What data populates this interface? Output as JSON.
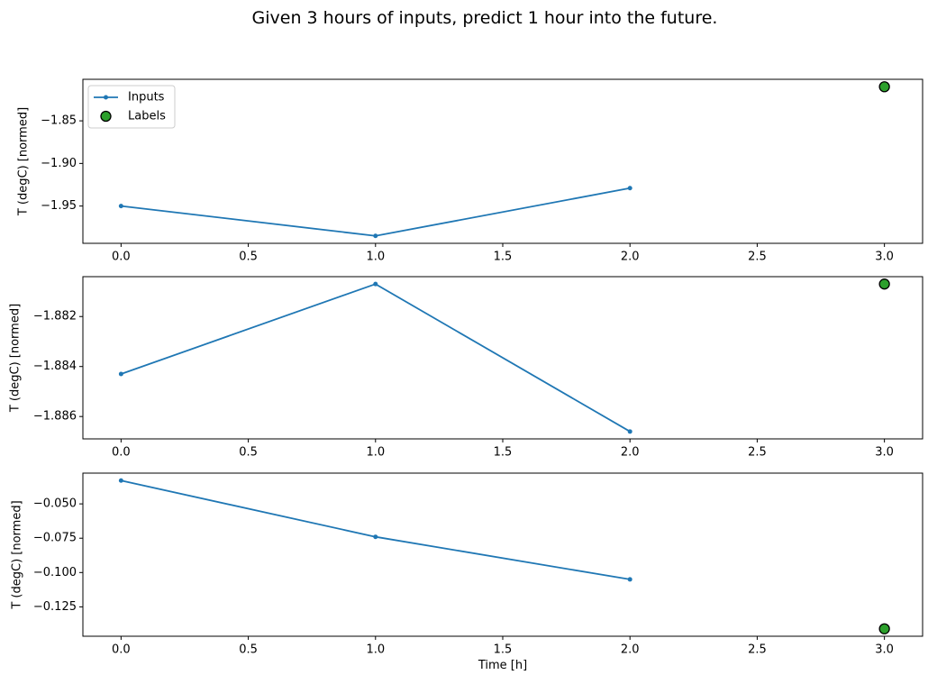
{
  "title": "Given 3 hours of inputs, predict 1 hour into the future.",
  "colors": {
    "inputs_line": "#1f77b4",
    "labels_fill": "#2ca02c",
    "labels_edge": "#000000",
    "axis": "#000000",
    "legend_border": "#cccccc",
    "background": "#ffffff"
  },
  "legend": {
    "position": "upper left",
    "entries": [
      {
        "label": "Inputs",
        "marker": "line-with-dot",
        "color": "#1f77b4"
      },
      {
        "label": "Labels",
        "marker": "circle",
        "color": "#2ca02c"
      }
    ]
  },
  "chart_data": [
    {
      "type": "line",
      "ylabel": "T (degC) [normed]",
      "xlabel": "",
      "xlim": [
        -0.15,
        3.15
      ],
      "ylim": [
        -1.99375,
        -1.80125
      ],
      "x_ticks": [
        0.0,
        0.5,
        1.0,
        1.5,
        2.0,
        2.5,
        3.0
      ],
      "x_tick_labels": [
        "0.0",
        "0.5",
        "1.0",
        "1.5",
        "2.0",
        "2.5",
        "3.0"
      ],
      "y_ticks": [
        -1.85,
        -1.9,
        -1.95
      ],
      "y_tick_labels": [
        "−1.85",
        "−1.90",
        "−1.95"
      ],
      "legend_visible": true,
      "grid": false,
      "series": [
        {
          "name": "Inputs",
          "kind": "line",
          "color": "#1f77b4",
          "x": [
            0,
            1,
            2
          ],
          "y": [
            -1.95,
            -1.985,
            -1.929
          ]
        },
        {
          "name": "Labels",
          "kind": "scatter",
          "color": "#2ca02c",
          "edge_color": "#000000",
          "x": [
            3
          ],
          "y": [
            -1.81
          ]
        }
      ]
    },
    {
      "type": "line",
      "ylabel": "T (degC) [normed]",
      "xlabel": "",
      "xlim": [
        -0.15,
        3.15
      ],
      "ylim": [
        -1.886895,
        -1.880405
      ],
      "x_ticks": [
        0.0,
        0.5,
        1.0,
        1.5,
        2.0,
        2.5,
        3.0
      ],
      "x_tick_labels": [
        "0.0",
        "0.5",
        "1.0",
        "1.5",
        "2.0",
        "2.5",
        "3.0"
      ],
      "y_ticks": [
        -1.882,
        -1.884,
        -1.886
      ],
      "y_tick_labels": [
        "−1.882",
        "−1.884",
        "−1.886"
      ],
      "legend_visible": false,
      "grid": false,
      "series": [
        {
          "name": "Inputs",
          "kind": "line",
          "color": "#1f77b4",
          "x": [
            0,
            1,
            2
          ],
          "y": [
            -1.8843,
            -1.8807,
            -1.8866
          ]
        },
        {
          "name": "Labels",
          "kind": "scatter",
          "color": "#2ca02c",
          "edge_color": "#000000",
          "x": [
            3
          ],
          "y": [
            -1.8807
          ]
        }
      ]
    },
    {
      "type": "line",
      "ylabel": "T (degC) [normed]",
      "xlabel": "Time [h]",
      "xlim": [
        -0.15,
        3.15
      ],
      "ylim": [
        -0.1464,
        -0.0276
      ],
      "x_ticks": [
        0.0,
        0.5,
        1.0,
        1.5,
        2.0,
        2.5,
        3.0
      ],
      "x_tick_labels": [
        "0.0",
        "0.5",
        "1.0",
        "1.5",
        "2.0",
        "2.5",
        "3.0"
      ],
      "y_ticks": [
        -0.05,
        -0.075,
        -0.1,
        -0.125
      ],
      "y_tick_labels": [
        "−0.050",
        "−0.075",
        "−0.100",
        "−0.125"
      ],
      "legend_visible": false,
      "grid": false,
      "series": [
        {
          "name": "Inputs",
          "kind": "line",
          "color": "#1f77b4",
          "x": [
            0,
            1,
            2
          ],
          "y": [
            -0.033,
            -0.074,
            -0.105
          ]
        },
        {
          "name": "Labels",
          "kind": "scatter",
          "color": "#2ca02c",
          "edge_color": "#000000",
          "x": [
            3
          ],
          "y": [
            -0.141
          ]
        }
      ]
    }
  ]
}
